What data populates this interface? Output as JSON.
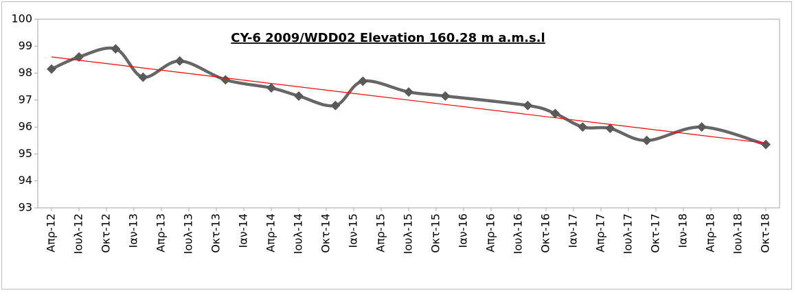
{
  "chart_data": {
    "type": "line",
    "title": "CY-6 2009/WDD02 Elevation 160.28 m a.m.s.l",
    "x": [
      "2012-04",
      "2012-07",
      "2012-11",
      "2013-02",
      "2013-06",
      "2013-11",
      "2014-04",
      "2014-07",
      "2014-11",
      "2015-02",
      "2015-07",
      "2015-11",
      "2016-08",
      "2016-11",
      "2017-02",
      "2017-05",
      "2017-09",
      "2018-03",
      "2018-10"
    ],
    "series": [
      {
        "color": "#666666",
        "marker_color": "#595959",
        "values": [
          98.15,
          98.6,
          98.9,
          97.85,
          98.45,
          97.75,
          97.45,
          97.15,
          96.8,
          97.7,
          97.3,
          97.15,
          96.8,
          96.5,
          96.0,
          95.95,
          95.5,
          96.0,
          95.35
        ]
      }
    ],
    "trendline": {
      "x": [
        "2012-04",
        "2018-10"
      ],
      "values": [
        98.6,
        95.4
      ],
      "color": "#ff0000"
    },
    "xlim": [
      "2012-04",
      "2018-10"
    ],
    "xticks": [
      {
        "value": "2012-04",
        "label": "Απρ-12"
      },
      {
        "value": "2012-07",
        "label": "Ιουλ-12"
      },
      {
        "value": "2012-10",
        "label": "Οκτ-12"
      },
      {
        "value": "2013-01",
        "label": "Ιαν-13"
      },
      {
        "value": "2013-04",
        "label": "Απρ-13"
      },
      {
        "value": "2013-07",
        "label": "Ιουλ-13"
      },
      {
        "value": "2013-10",
        "label": "Οκτ-13"
      },
      {
        "value": "2014-01",
        "label": "Ιαν-14"
      },
      {
        "value": "2014-04",
        "label": "Απρ-14"
      },
      {
        "value": "2014-07",
        "label": "Ιουλ-14"
      },
      {
        "value": "2014-10",
        "label": "Οκτ-14"
      },
      {
        "value": "2015-01",
        "label": "Ιαν-15"
      },
      {
        "value": "2015-04",
        "label": "Απρ-15"
      },
      {
        "value": "2015-07",
        "label": "Ιουλ-15"
      },
      {
        "value": "2015-10",
        "label": "Οκτ-15"
      },
      {
        "value": "2016-01",
        "label": "Ιαν-16"
      },
      {
        "value": "2016-04",
        "label": "Απρ-16"
      },
      {
        "value": "2016-07",
        "label": "Ιουλ-16"
      },
      {
        "value": "2016-10",
        "label": "Οκτ-16"
      },
      {
        "value": "2017-01",
        "label": "Ιαν-17"
      },
      {
        "value": "2017-04",
        "label": "Απρ-17"
      },
      {
        "value": "2017-07",
        "label": "Ιουλ-17"
      },
      {
        "value": "2017-10",
        "label": "Οκτ-17"
      },
      {
        "value": "2018-01",
        "label": "Ιαν-18"
      },
      {
        "value": "2018-04",
        "label": "Απρ-18"
      },
      {
        "value": "2018-07",
        "label": "Ιουλ-18"
      },
      {
        "value": "2018-10",
        "label": "Οκτ-18"
      }
    ],
    "ylim": [
      93,
      100
    ],
    "yticks": [
      93,
      94,
      95,
      96,
      97,
      98,
      99,
      100
    ],
    "grid": false
  }
}
